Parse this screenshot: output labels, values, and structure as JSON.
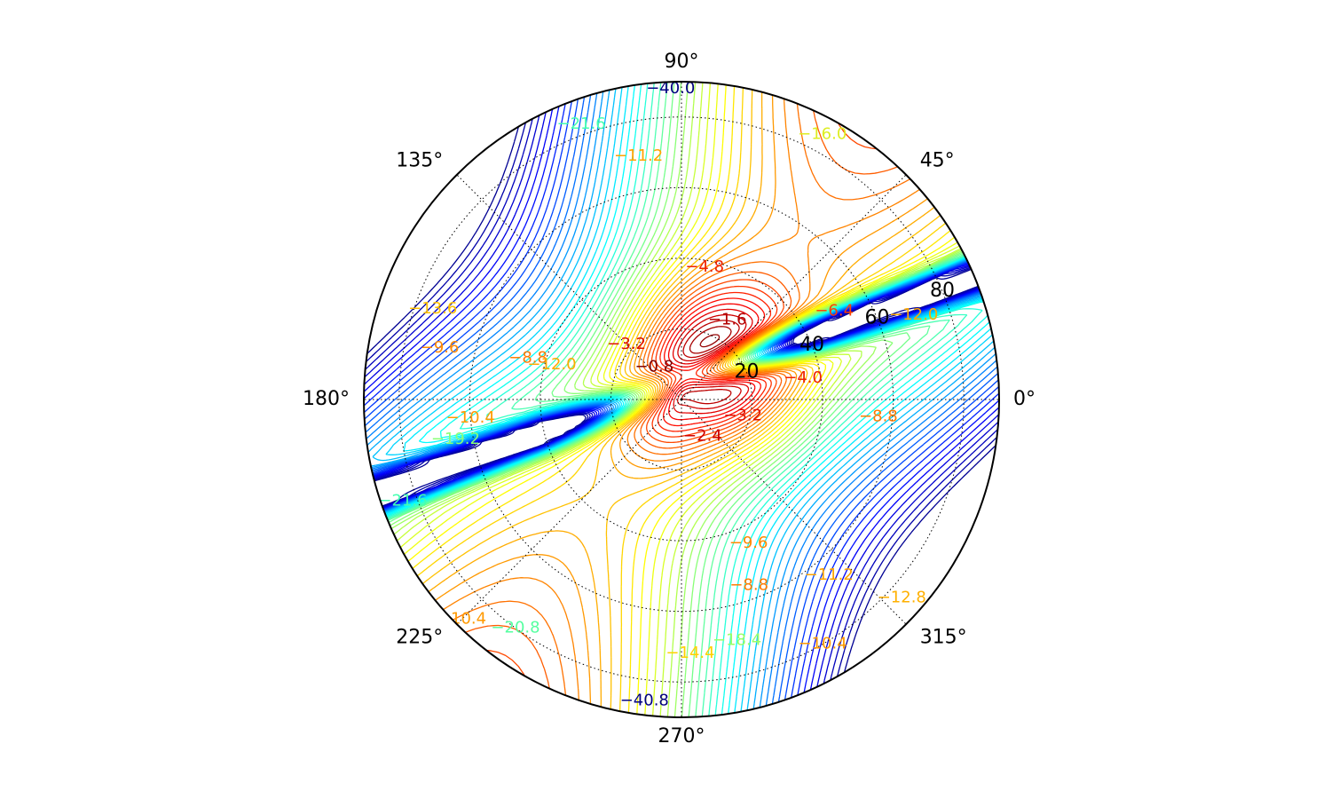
{
  "chart_data": {
    "type": "contour",
    "projection": "polar",
    "title": "",
    "theta_ticks": [
      "0°",
      "45°",
      "90°",
      "135°",
      "180°",
      "225°",
      "270°",
      "315°"
    ],
    "theta_tick_degrees": [
      0,
      45,
      90,
      135,
      180,
      225,
      270,
      315
    ],
    "r_ticks": [
      "20",
      "40",
      "60",
      "80"
    ],
    "r_tick_values": [
      20,
      40,
      60,
      80
    ],
    "r_max": 90,
    "r_label_angle_deg": 22.5,
    "grid": true,
    "colormap": "jet",
    "levels": {
      "min": -40.8,
      "max": 0.0,
      "step": 0.8
    },
    "features": [
      {
        "kind": "maximum",
        "theta_deg": 45,
        "r": 12,
        "value": 0.0
      },
      {
        "kind": "saddle-min",
        "theta_deg": 165,
        "r": 55,
        "value": -8.8
      },
      {
        "kind": "saddle-min",
        "theta_deg": 300,
        "r": 58,
        "value": -8.8
      },
      {
        "kind": "ridge-low",
        "theta_deg": 255,
        "r": 90,
        "value": -40.8
      }
    ],
    "contour_labels": [
      {
        "text": "-0.8",
        "theta_deg": 130,
        "r": 12,
        "color": "#7f0000"
      },
      {
        "text": "-1.6",
        "theta_deg": 60,
        "r": 26,
        "color": "#b20000"
      },
      {
        "text": "-2.4",
        "theta_deg": 300,
        "r": 12,
        "color": "#cc0000"
      },
      {
        "text": "-3.2",
        "theta_deg": 135,
        "r": 22,
        "color": "#dd1100"
      },
      {
        "text": "-3.2",
        "theta_deg": 345,
        "r": 18,
        "color": "#dd1100"
      },
      {
        "text": "-4.0",
        "theta_deg": 10,
        "r": 35,
        "color": "#ee2200"
      },
      {
        "text": "-4.8",
        "theta_deg": 80,
        "r": 38,
        "color": "#ee2200"
      },
      {
        "text": "-6.4",
        "theta_deg": 30,
        "r": 50,
        "color": "#ff4000"
      },
      {
        "text": "-8.8",
        "theta_deg": 355,
        "r": 56,
        "color": "#ff7a00"
      },
      {
        "text": "-8.8",
        "theta_deg": 165,
        "r": 45,
        "color": "#ff7a00"
      },
      {
        "text": "-8.8",
        "theta_deg": 290,
        "r": 56,
        "color": "#ff7a00"
      },
      {
        "text": "-9.6",
        "theta_deg": 168,
        "r": 70,
        "color": "#ff8800"
      },
      {
        "text": "-9.6",
        "theta_deg": 295,
        "r": 45,
        "color": "#ff8800"
      },
      {
        "text": "-10.4",
        "theta_deg": 185,
        "r": 60,
        "color": "#ff9900"
      },
      {
        "text": "-10.4",
        "theta_deg": 300,
        "r": 80,
        "color": "#ff9900"
      },
      {
        "text": "-10.4",
        "theta_deg": 225,
        "r": 88,
        "color": "#ff9900"
      },
      {
        "text": "-11.2",
        "theta_deg": 100,
        "r": 70,
        "color": "#ffa300"
      },
      {
        "text": "-11.2",
        "theta_deg": 310,
        "r": 65,
        "color": "#ffa300"
      },
      {
        "text": "-12.0",
        "theta_deg": 165,
        "r": 38,
        "color": "#ffaa00"
      },
      {
        "text": "-12.0",
        "theta_deg": 20,
        "r": 70,
        "color": "#ffaa00"
      },
      {
        "text": "-12.8",
        "theta_deg": 318,
        "r": 84,
        "color": "#ffb000"
      },
      {
        "text": "-13.6",
        "theta_deg": 160,
        "r": 75,
        "color": "#ffc000"
      },
      {
        "text": "-14.4",
        "theta_deg": 272,
        "r": 72,
        "color": "#ffd000"
      },
      {
        "text": "-16.0",
        "theta_deg": 62,
        "r": 85,
        "color": "#ddee22"
      },
      {
        "text": "-18.4",
        "theta_deg": 283,
        "r": 70,
        "color": "#99ff66"
      },
      {
        "text": "-19.2",
        "theta_deg": 190,
        "r": 65,
        "color": "#88ff77"
      },
      {
        "text": "-20.8",
        "theta_deg": 234,
        "r": 80,
        "color": "#55ffa0"
      },
      {
        "text": "-21.6",
        "theta_deg": 110,
        "r": 83,
        "color": "#44ffb0"
      },
      {
        "text": "-21.6",
        "theta_deg": 200,
        "r": 84,
        "color": "#44ffb0"
      },
      {
        "text": "-40.0",
        "theta_deg": 92,
        "r": 88,
        "color": "#000080"
      },
      {
        "text": "-40.8",
        "theta_deg": 263,
        "r": 86,
        "color": "#000080"
      }
    ]
  }
}
